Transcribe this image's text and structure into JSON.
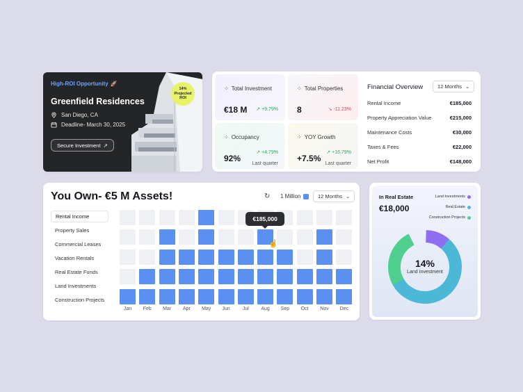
{
  "hero": {
    "tag": "High-ROI Opportunity",
    "title": "Greenfield Residences",
    "location": "San Diego, CA",
    "deadline": "Deadline- March 30, 2025",
    "button": "Secure Investment",
    "roi_badge": [
      "14%",
      "Projected",
      "ROI"
    ]
  },
  "stats": [
    {
      "label": "Total Investment",
      "value": "€18 M",
      "change": "+9.79%",
      "dir": "up",
      "sub": ""
    },
    {
      "label": "Total Properties",
      "value": "8",
      "change": "-11.23%",
      "dir": "down",
      "sub": ""
    },
    {
      "label": "Occupancy",
      "value": "92%",
      "change": "+4.79%",
      "dir": "up",
      "sub": "Last quarter"
    },
    {
      "label": "YOY Growth",
      "value": "+7.5%",
      "change": "+16.79%",
      "dir": "up",
      "sub": "Last quarter"
    }
  ],
  "financial": {
    "title": "Financial Overview",
    "period": "12 Months",
    "items": [
      {
        "label": "Rental Income",
        "value": "€185,000"
      },
      {
        "label": "Property Appreciation Value",
        "value": "€215,000"
      },
      {
        "label": "Maintenance Costs",
        "value": "€30,000"
      },
      {
        "label": "Taxes & Fees",
        "value": "€22,000"
      },
      {
        "label": "Net Profit",
        "value": "€148,000"
      }
    ]
  },
  "assets": {
    "title": "You Own- €5 M Assets!",
    "legend": "1 Million",
    "period": "12 Months",
    "categories": [
      "Rental Income",
      "Property Sales",
      "Commercial Leases",
      "Vacation Rentals",
      "Real Estate Funds",
      "Land Investments",
      "Construction Projects"
    ],
    "selected": "Rental Income",
    "months": [
      "Jan",
      "Feb",
      "Mar",
      "Apr",
      "May",
      "Jun",
      "Jul",
      "Aug",
      "Sep",
      "Oct",
      "Nov",
      "Dec"
    ],
    "levels": [
      1,
      2,
      4,
      3,
      5,
      3,
      3,
      4,
      3,
      2,
      4,
      2
    ],
    "tooltip": "€185,000",
    "tooltip_month": "Aug",
    "bar_color": "#5b8ff0"
  },
  "real_estate": {
    "label": "In Real Estate",
    "value": "€18,000",
    "legend": [
      {
        "name": "Land Investments",
        "color": "#8f6cf0"
      },
      {
        "name": "Real Estate",
        "color": "#4bb8d6"
      },
      {
        "name": "Construction Projects",
        "color": "#4fd08e"
      }
    ],
    "center_pct": "14%",
    "center_label": "Land Investment"
  }
}
